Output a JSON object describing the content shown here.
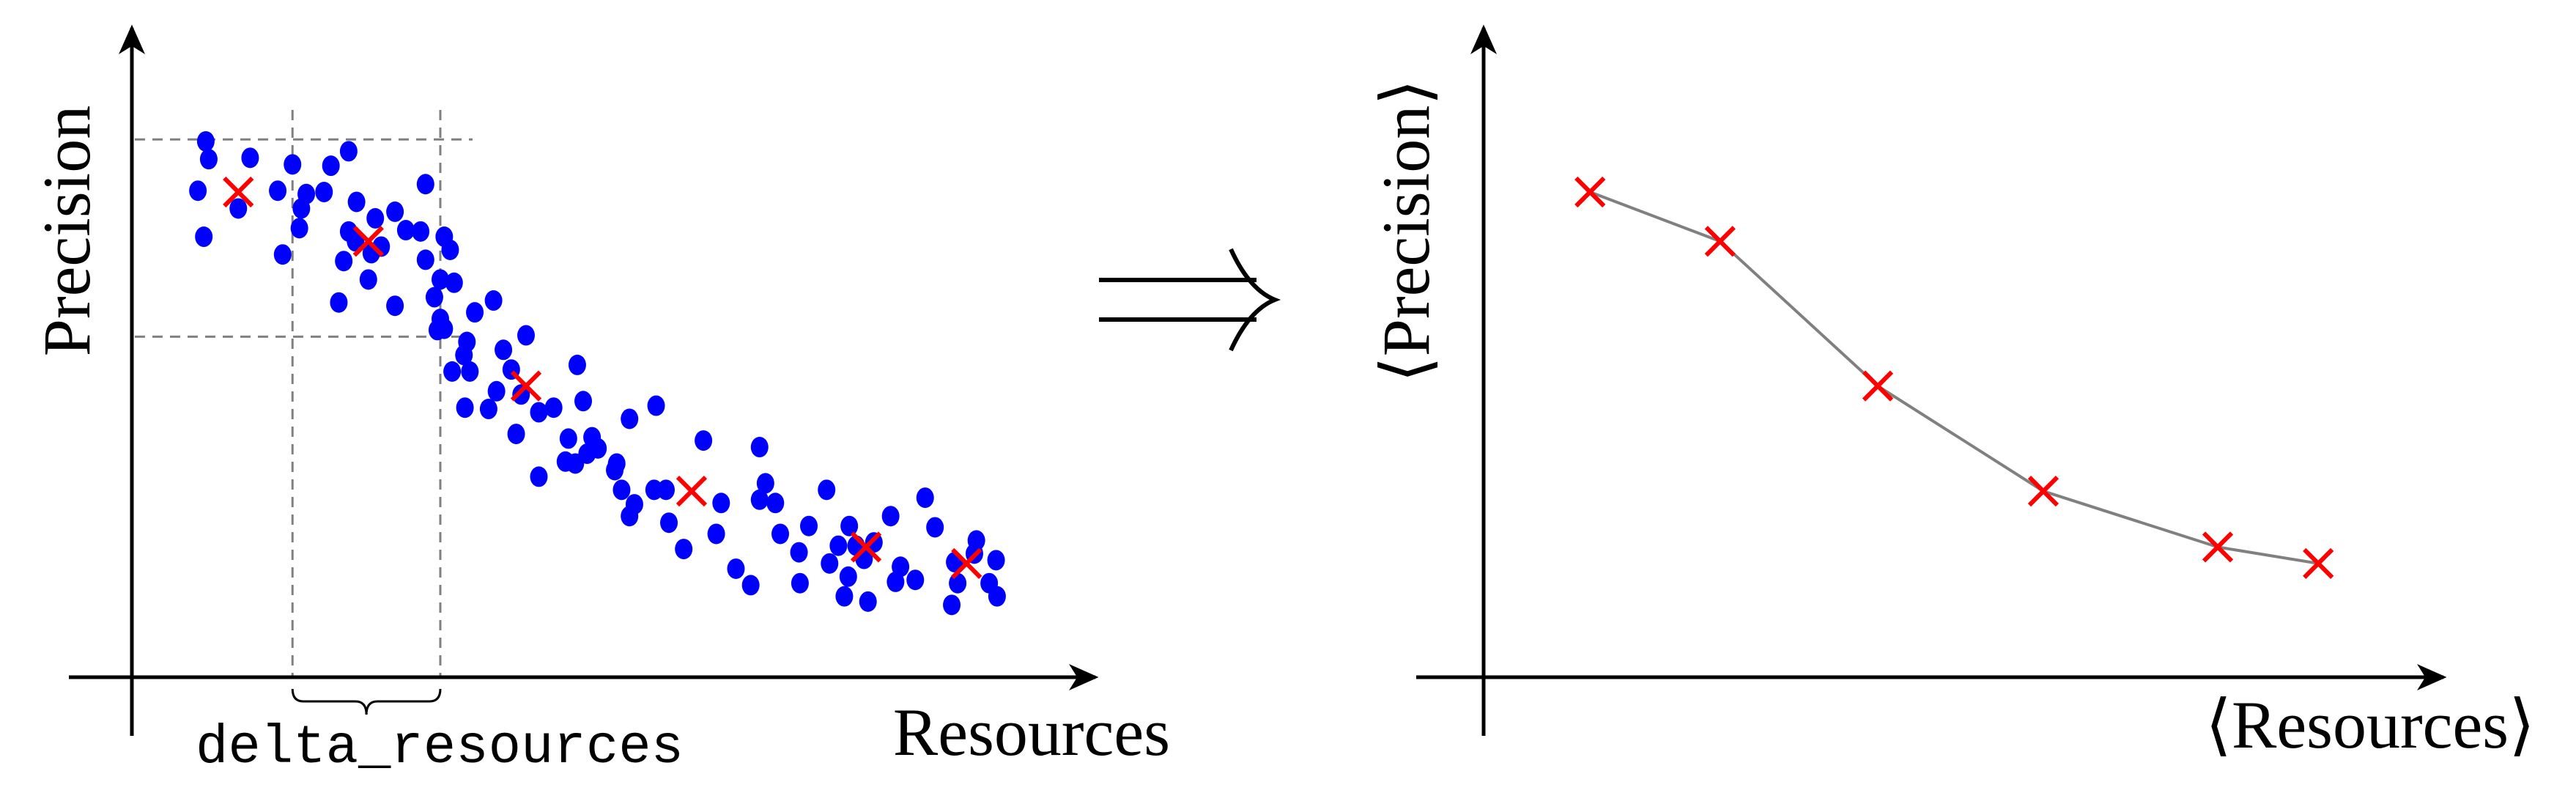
{
  "implication_symbol": "⟹",
  "colors": {
    "points": "#0000ff",
    "means": "#ff0000",
    "guides": "#808080",
    "mean_line": "#808080",
    "axes": "#000000"
  },
  "chart_data": [
    {
      "type": "scatter",
      "title": "",
      "xlabel": "Resources",
      "ylabel": "Precision",
      "grid": false,
      "xlim": [
        0,
        98
      ],
      "ylim": [
        0,
        100
      ],
      "annotation": "delta_resources",
      "guides": {
        "x": [
          16.3,
          31.3
        ],
        "y": [
          51.8,
          81.8
        ]
      },
      "series": [
        {
          "marker": "dot",
          "points": [
            [
              7.5,
              81.5
            ],
            [
              7.8,
              78.8
            ],
            [
              12,
              79
            ],
            [
              6.7,
              74
            ],
            [
              10.8,
              71.3
            ],
            [
              7.3,
              67
            ],
            [
              16.3,
              78
            ],
            [
              20.2,
              77.8
            ],
            [
              22,
              80
            ],
            [
              17.7,
              73.5
            ],
            [
              17.2,
              71.3
            ],
            [
              14.8,
              74
            ],
            [
              19.5,
              73.8
            ],
            [
              22.8,
              72.3
            ],
            [
              24.7,
              69.8
            ],
            [
              26.7,
              70.8
            ],
            [
              29.8,
              75
            ],
            [
              27.8,
              68
            ],
            [
              25.3,
              65.5
            ],
            [
              22,
              67.8
            ],
            [
              21.5,
              63.3
            ],
            [
              24.3,
              64.5
            ],
            [
              21,
              57
            ],
            [
              26.7,
              56.5
            ],
            [
              24,
              60.5
            ],
            [
              22.7,
              66.3
            ],
            [
              15.3,
              64.3
            ],
            [
              17,
              68.3
            ],
            [
              29.8,
              63.5
            ],
            [
              29.3,
              67.8
            ],
            [
              31.7,
              67
            ],
            [
              32.3,
              65
            ],
            [
              31.3,
              60.5
            ],
            [
              32.7,
              60
            ],
            [
              30.7,
              57.8
            ],
            [
              34.8,
              55.5
            ],
            [
              31.3,
              54.5
            ],
            [
              31.7,
              53
            ],
            [
              34,
              51
            ],
            [
              36.7,
              57.3
            ],
            [
              40,
              52
            ],
            [
              37.7,
              49.8
            ],
            [
              33.7,
              49
            ],
            [
              32.5,
              46.5
            ],
            [
              34.3,
              46.5
            ],
            [
              37,
              43.5
            ],
            [
              38.5,
              46.8
            ],
            [
              39.5,
              43
            ],
            [
              41.3,
              40.3
            ],
            [
              42.8,
              41
            ],
            [
              45.2,
              47.5
            ],
            [
              45.8,
              42
            ],
            [
              53.2,
              41.3
            ],
            [
              50.5,
              39.3
            ],
            [
              46.7,
              36.5
            ],
            [
              44.3,
              36.3
            ],
            [
              47.3,
              34.8
            ],
            [
              39,
              37
            ],
            [
              36.2,
              40.8
            ],
            [
              33.8,
              41
            ],
            [
              45,
              32.5
            ],
            [
              41.3,
              30.5
            ],
            [
              44,
              32.8
            ],
            [
              46.2,
              34
            ],
            [
              49.2,
              32.5
            ],
            [
              49.7,
              28.5
            ],
            [
              53,
              28.5
            ],
            [
              50.5,
              24.5
            ],
            [
              54.5,
              23.5
            ],
            [
              58,
              36
            ],
            [
              63.7,
              35
            ],
            [
              59.3,
              21.8
            ],
            [
              56,
              19.5
            ],
            [
              61.3,
              16.5
            ],
            [
              64.3,
              29.5
            ],
            [
              63.7,
              27
            ],
            [
              62.8,
              14
            ],
            [
              67.8,
              14.3
            ],
            [
              65.8,
              21.8
            ],
            [
              68.7,
              23
            ],
            [
              70.5,
              28.5
            ],
            [
              71.7,
              20
            ],
            [
              70.8,
              17.3
            ],
            [
              72.7,
              15.3
            ],
            [
              72.3,
              12.3
            ],
            [
              74.7,
              11.5
            ],
            [
              75.3,
              20.5
            ],
            [
              77,
              24.5
            ],
            [
              73.5,
              20
            ],
            [
              80.5,
              27.3
            ],
            [
              81.5,
              22.8
            ],
            [
              77.5,
              14.5
            ],
            [
              79.5,
              14.8
            ],
            [
              83.5,
              17.5
            ],
            [
              83.2,
              11
            ],
            [
              83.8,
              14.3
            ],
            [
              85.7,
              20.8
            ],
            [
              87.7,
              17.8
            ],
            [
              87,
              14.3
            ],
            [
              87.8,
              12.3
            ],
            [
              85.5,
              18.8
            ],
            [
              67.7,
              19
            ],
            [
              74.3,
              18
            ],
            [
              78,
              16.8
            ],
            [
              72.8,
              23
            ],
            [
              65.3,
              26.5
            ],
            [
              59.8,
              26.5
            ],
            [
              54.2,
              28.5
            ],
            [
              51,
              26.3
            ],
            [
              49,
              31.5
            ],
            [
              31,
              52.8
            ]
          ]
        },
        {
          "marker": "x",
          "points": [
            [
              10.8,
              73.8
            ],
            [
              24,
              66.3
            ],
            [
              40,
              44.3
            ],
            [
              56.8,
              28.3
            ],
            [
              74.5,
              19.8
            ],
            [
              84.7,
              17.3
            ]
          ]
        }
      ]
    },
    {
      "type": "line",
      "title": "",
      "xlabel": "⟨Resources⟩",
      "ylabel": "⟨Precision⟩",
      "grid": false,
      "xlim": [
        0,
        98
      ],
      "ylim": [
        0,
        100
      ],
      "marker": "x",
      "points": [
        [
          10.8,
          73.8
        ],
        [
          24,
          66.3
        ],
        [
          40,
          44.3
        ],
        [
          56.8,
          28.3
        ],
        [
          74.5,
          19.8
        ],
        [
          84.7,
          17.3
        ]
      ]
    }
  ]
}
